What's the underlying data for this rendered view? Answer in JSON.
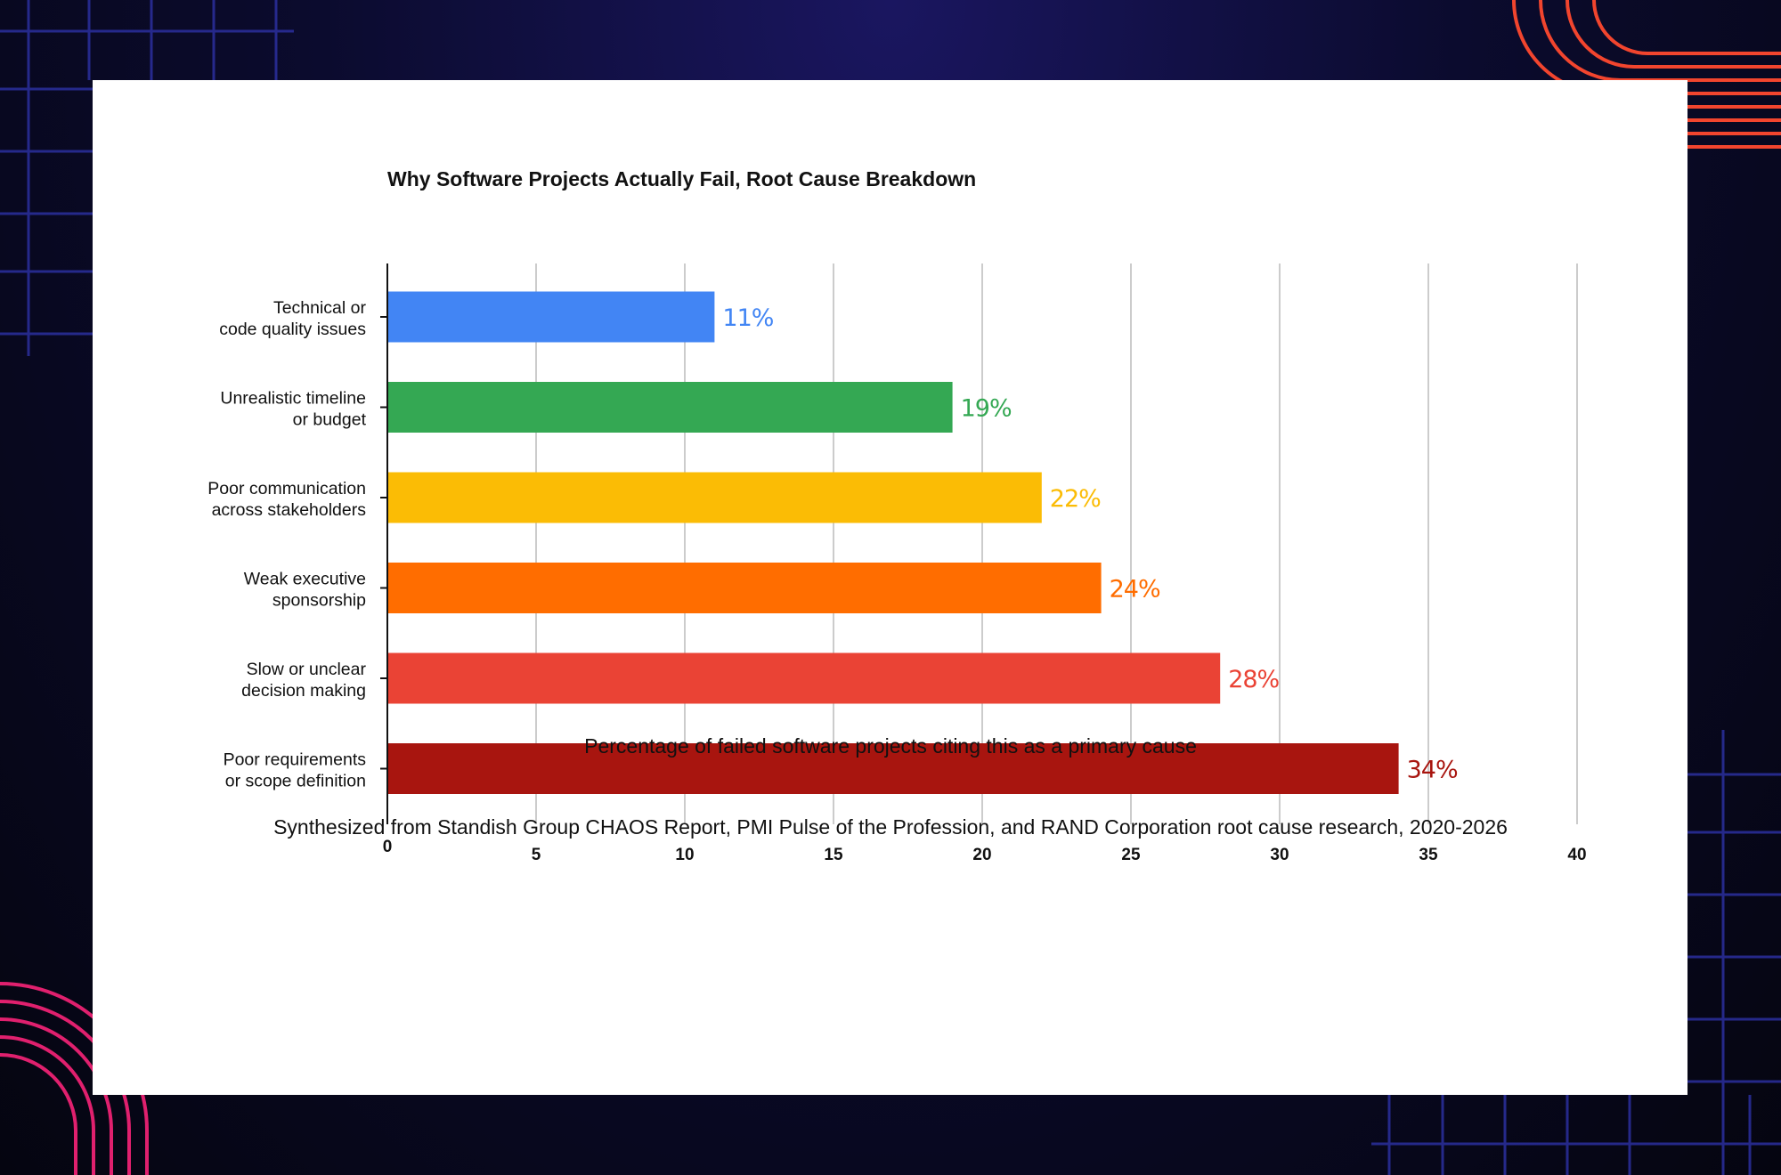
{
  "colors": {
    "background": "#0b0b2e",
    "card": "#ffffff",
    "grid": "#cccccc",
    "axis": "#111111",
    "decor_blue": "#2b2f9e",
    "decor_red": "#f2452e",
    "decor_pink": "#e0206e"
  },
  "chart_data": {
    "type": "bar",
    "orientation": "horizontal",
    "title": "Why Software Projects Actually Fail, Root Cause Breakdown",
    "categories": [
      [
        "Technical or",
        "code quality issues"
      ],
      [
        "Unrealistic timeline",
        "or budget"
      ],
      [
        "Poor communication",
        "across stakeholders"
      ],
      [
        "Weak executive",
        "sponsorship"
      ],
      [
        "Slow or unclear",
        "decision making"
      ],
      [
        "Poor requirements",
        "or scope definition"
      ]
    ],
    "values": [
      11,
      19,
      22,
      24,
      28,
      34
    ],
    "value_labels": [
      "11%",
      "19%",
      "22%",
      "24%",
      "28%",
      "34%"
    ],
    "bar_colors": [
      "#4285f4",
      "#34a853",
      "#fbbc05",
      "#ff6d00",
      "#ea4335",
      "#a8150f"
    ],
    "xlim": [
      0,
      40
    ],
    "x_ticks": [
      0,
      5,
      10,
      15,
      20,
      25,
      30,
      35,
      40
    ],
    "x_tick_labels": [
      "0",
      "5",
      "10",
      "15",
      "20",
      "25",
      "30",
      "35",
      "40"
    ],
    "xlabel": "Percentage of failed software projects citing this as a primary cause",
    "ylabel": "",
    "grid": "vertical",
    "legend": "none",
    "source_note": "Synthesized from Standish Group CHAOS Report, PMI Pulse of the Profession, and RAND Corporation root cause research, 2020-2026"
  }
}
